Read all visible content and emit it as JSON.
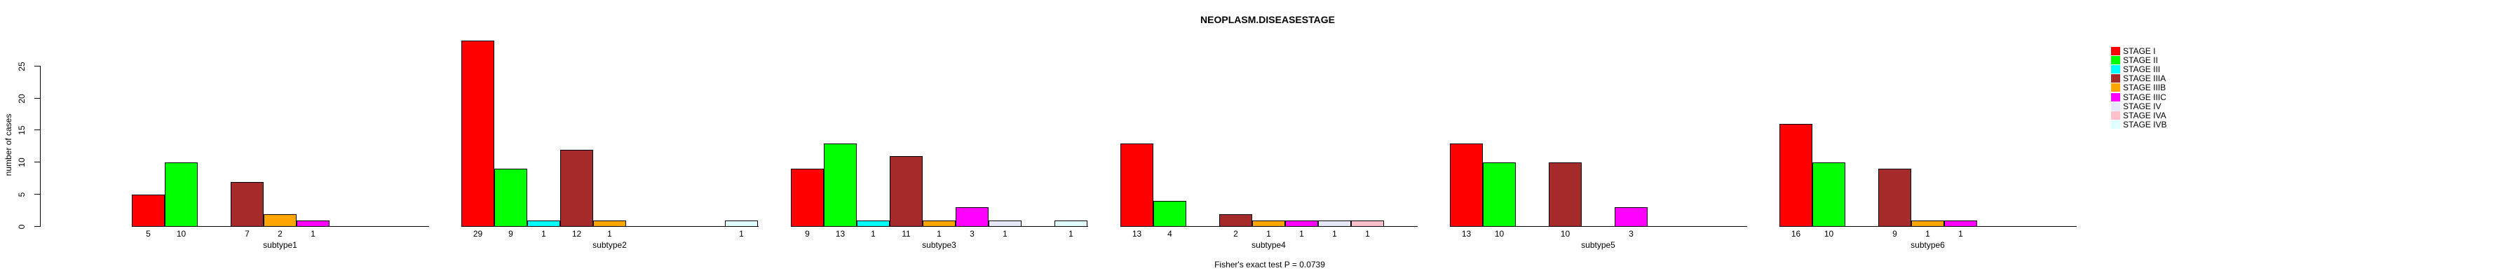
{
  "chart_data": {
    "type": "bar",
    "title": "NEOPLASM.DISEASESTAGE",
    "ylabel": "number of cases",
    "xlabel": "",
    "annotation": "Fisher's exact test P = 0.0739",
    "ylim": [
      0,
      25
    ],
    "yticks": [
      0,
      5,
      10,
      15,
      20,
      25
    ],
    "grid": "off",
    "legend_position": "right",
    "bar_value_labels_shown": true,
    "background_color": "#FFFFFF",
    "text_color": "#000000",
    "categories": [
      "subtype1",
      "subtype2",
      "subtype3",
      "subtype4",
      "subtype5",
      "subtype6"
    ],
    "series": [
      {
        "name": "STAGE I",
        "color": "#FF0000",
        "values": [
          5,
          29,
          9,
          13,
          13,
          16
        ]
      },
      {
        "name": "STAGE II",
        "color": "#00FF00",
        "values": [
          10,
          9,
          13,
          4,
          10,
          10
        ]
      },
      {
        "name": "STAGE III",
        "color": "#00FFFF",
        "values": [
          0,
          1,
          1,
          0,
          0,
          0
        ]
      },
      {
        "name": "STAGE IIIA",
        "color": "#A52A2A",
        "values": [
          7,
          12,
          11,
          2,
          10,
          9
        ]
      },
      {
        "name": "STAGE IIIB",
        "color": "#FFA500",
        "values": [
          2,
          1,
          1,
          1,
          0,
          1
        ]
      },
      {
        "name": "STAGE IIIC",
        "color": "#FF00FF",
        "values": [
          1,
          0,
          3,
          1,
          3,
          1
        ]
      },
      {
        "name": "STAGE IV",
        "color": "#E6E6FA",
        "values": [
          0,
          0,
          1,
          1,
          0,
          0
        ]
      },
      {
        "name": "STAGE IVA",
        "color": "#FFC0CB",
        "values": [
          0,
          0,
          0,
          1,
          0,
          0
        ]
      },
      {
        "name": "STAGE IVB",
        "color": "#E0FFFF",
        "values": [
          0,
          1,
          1,
          0,
          0,
          0
        ]
      }
    ]
  }
}
